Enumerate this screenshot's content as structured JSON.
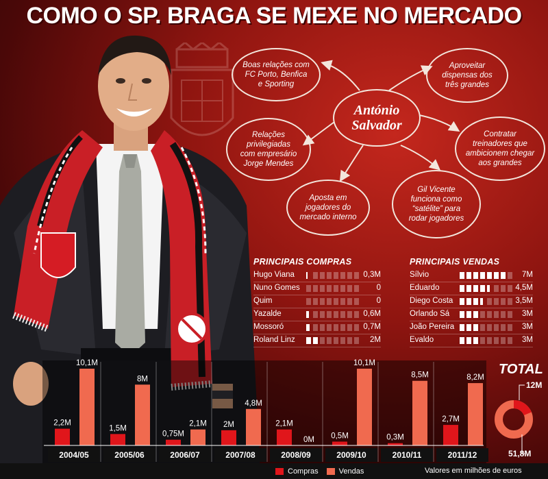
{
  "headline": "COMO O SP. BRAGA SE MEXE NO MERCADO",
  "mind_map": {
    "center": "António\nSalvador",
    "bubbles": [
      "Boas relações com\nFC Porto, Benfica\ne Sporting",
      "Aproveitar\ndispensas dos\ntrês grandes",
      "Relações\nprivilegiadas\ncom empresário\nJorge Mendes",
      "Contratar\ntreinadores que\nambicionem chegar\naos grandes",
      "Aposta em\njogadores do\nmercado interno",
      "Gil Vicente\nfunciona como\n“satélite” para\nrodar jogadores"
    ]
  },
  "compras": {
    "title": "PRINCIPAIS COMPRAS",
    "rows": [
      {
        "name": "Hugo Viana",
        "value": 0.3,
        "label": "0,3M"
      },
      {
        "name": "Nuno Gomes",
        "value": 0,
        "label": "0"
      },
      {
        "name": "Quim",
        "value": 0,
        "label": "0"
      },
      {
        "name": "Yazalde",
        "value": 0.6,
        "label": "0,6M"
      },
      {
        "name": "Mossoró",
        "value": 0.7,
        "label": "0,7M"
      },
      {
        "name": "Roland Linz",
        "value": 2,
        "label": "2M"
      }
    ]
  },
  "vendas": {
    "title": "PRINCIPAIS VENDAS",
    "rows": [
      {
        "name": "Sílvio",
        "value": 7,
        "label": "7M"
      },
      {
        "name": "Eduardo",
        "value": 4.5,
        "label": "4,5M"
      },
      {
        "name": "Diego Costa",
        "value": 3.5,
        "label": "3,5M"
      },
      {
        "name": "Orlando Sá",
        "value": 3,
        "label": "3M"
      },
      {
        "name": "João Pereira",
        "value": 3,
        "label": "3M"
      },
      {
        "name": "Evaldo",
        "value": 3,
        "label": "3M"
      }
    ]
  },
  "chart_data": {
    "type": "bar",
    "categories": [
      "2004/05",
      "2005/06",
      "2006/07",
      "2007/08",
      "2008/09",
      "2009/10",
      "2010/11",
      "2011/12"
    ],
    "series": [
      {
        "name": "Compras",
        "values": [
          2.2,
          1.5,
          0.75,
          2,
          2.1,
          0.5,
          0.3,
          2.7
        ],
        "labels": [
          "2,2M",
          "1,5M",
          "0,75M",
          "2M",
          "2,1M",
          "0,5M",
          "0,3M",
          "2,7M"
        ],
        "color": "#e0161b"
      },
      {
        "name": "Vendas",
        "values": [
          10.1,
          8,
          2.1,
          4.8,
          0,
          10.1,
          8.5,
          8.2
        ],
        "labels": [
          "10,1M",
          "8M",
          "2,1M",
          "4,8M",
          "0M",
          "10,1M",
          "8,5M",
          "8,2M"
        ],
        "color": "#f06a4f"
      }
    ],
    "total": {
      "title": "TOTAL",
      "compras": 12,
      "vendas": 51.8,
      "compras_label": "12M",
      "vendas_label": "51,8M"
    },
    "units": "Valores em milhões de euros"
  },
  "legend": {
    "compras": "Compras",
    "vendas": "Vendas"
  },
  "colors": {
    "compras": "#e0161b",
    "vendas": "#f06a4f",
    "block_light": "#ffffff",
    "block_dim": "rgba(255,255,255,0.28)"
  }
}
